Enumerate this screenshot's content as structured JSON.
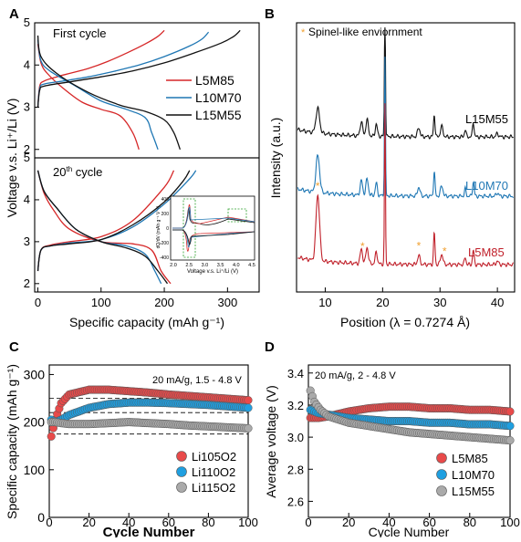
{
  "chart_data": [
    {
      "panel": "A",
      "type": "line",
      "ylabel": "Voltage v.s. Li⁺/Li (V)",
      "xlabel": "Specific capacity (mAh g⁻¹)",
      "xlim": [
        -5,
        350
      ],
      "x_ticks": [
        "0",
        "100",
        "200",
        "300"
      ],
      "sub": [
        {
          "annotation": "First cycle",
          "ylim": [
            1.8,
            5
          ],
          "y_ticks": [
            "2",
            "3",
            "4",
            "5"
          ],
          "legend_placement": "right",
          "series": [
            {
              "name": "L5M85",
              "color": "#d62728",
              "charge": {
                "x": [
                  0,
                  3,
                  10,
                  30,
                  50,
                  80,
                  110,
                  140,
                  170,
                  190,
                  200
                ],
                "y": [
                  3.0,
                  3.5,
                  3.62,
                  3.72,
                  3.8,
                  3.92,
                  4.08,
                  4.28,
                  4.5,
                  4.68,
                  4.82
                ]
              },
              "discharge": {
                "x": [
                  0,
                  5,
                  15,
                  40,
                  70,
                  100,
                  130,
                  150,
                  160
                ],
                "y": [
                  4.5,
                  4.05,
                  3.8,
                  3.45,
                  3.12,
                  2.95,
                  2.8,
                  2.4,
                  2.0
                ]
              }
            },
            {
              "name": "L10M70",
              "color": "#1f77b4",
              "charge": {
                "x": [
                  0,
                  3,
                  10,
                  40,
                  80,
                  120,
                  160,
                  200,
                  240,
                  260,
                  270
                ],
                "y": [
                  3.0,
                  3.45,
                  3.55,
                  3.62,
                  3.72,
                  3.85,
                  4.0,
                  4.2,
                  4.45,
                  4.62,
                  4.78
                ]
              },
              "discharge": {
                "x": [
                  0,
                  5,
                  20,
                  60,
                  100,
                  140,
                  170,
                  180,
                  190
                ],
                "y": [
                  4.6,
                  4.1,
                  3.85,
                  3.5,
                  3.15,
                  2.95,
                  2.75,
                  2.4,
                  2.0
                ]
              }
            },
            {
              "name": "L15M55",
              "color": "#111111",
              "charge": {
                "x": [
                  0,
                  3,
                  10,
                  50,
                  100,
                  150,
                  200,
                  250,
                  290,
                  310,
                  320
                ],
                "y": [
                  3.0,
                  3.4,
                  3.5,
                  3.6,
                  3.72,
                  3.86,
                  4.05,
                  4.3,
                  4.52,
                  4.68,
                  4.82
                ]
              },
              "discharge": {
                "x": [
                  0,
                  5,
                  30,
                  80,
                  130,
                  170,
                  200,
                  215,
                  225
                ],
                "y": [
                  4.7,
                  4.2,
                  3.8,
                  3.35,
                  3.05,
                  2.9,
                  2.7,
                  2.4,
                  2.0
                ]
              }
            }
          ]
        },
        {
          "annotation": "20th cycle",
          "ylim": [
            1.8,
            5
          ],
          "y_ticks": [
            "2",
            "3",
            "4",
            "5"
          ],
          "series": [
            {
              "name": "L5M85",
              "color": "#d62728",
              "charge": {
                "x": [
                  0,
                  5,
                  20,
                  50,
                  100,
                  150,
                  200,
                  215
                ],
                "y": [
                  2.3,
                  2.8,
                  2.92,
                  3.0,
                  3.12,
                  3.5,
                  4.3,
                  4.7
                ]
              },
              "discharge": {
                "x": [
                  0,
                  10,
                  25,
                  50,
                  100,
                  150,
                  180,
                  195,
                  210
                ],
                "y": [
                  4.7,
                  4.15,
                  3.75,
                  3.3,
                  3.0,
                  2.95,
                  2.8,
                  2.3,
                  2.0
                ]
              }
            },
            {
              "name": "L10M70",
              "color": "#1f77b4",
              "charge": {
                "x": [
                  0,
                  5,
                  20,
                  50,
                  100,
                  150,
                  200,
                  240,
                  250
                ],
                "y": [
                  2.3,
                  2.8,
                  2.9,
                  2.97,
                  3.05,
                  3.35,
                  3.9,
                  4.5,
                  4.7
                ]
              },
              "discharge": {
                "x": [
                  0,
                  10,
                  30,
                  60,
                  100,
                  140,
                  170,
                  185,
                  195
                ],
                "y": [
                  4.7,
                  4.2,
                  3.8,
                  3.3,
                  3.0,
                  2.9,
                  2.7,
                  2.3,
                  2.0
                ]
              }
            },
            {
              "name": "L15M55",
              "color": "#111111",
              "charge": {
                "x": [
                  0,
                  5,
                  20,
                  50,
                  100,
                  150,
                  200,
                  230,
                  240
                ],
                "y": [
                  2.3,
                  2.8,
                  2.9,
                  2.95,
                  3.05,
                  3.4,
                  3.95,
                  4.45,
                  4.7
                ]
              },
              "discharge": {
                "x": [
                  0,
                  10,
                  30,
                  60,
                  100,
                  140,
                  170,
                  190,
                  205
                ],
                "y": [
                  4.7,
                  4.2,
                  3.8,
                  3.3,
                  3.0,
                  2.85,
                  2.65,
                  2.3,
                  2.0
                ]
              }
            }
          ],
          "inset": {
            "ylabel": "dQ/dV (mAh g⁻¹ V⁻¹)",
            "xlabel": "Voltage v.s. Li⁺/Li (V)",
            "x_ticks": [
              "2.0",
              "2.5",
              "3.0",
              "3.5",
              "4.0",
              "4.5"
            ],
            "y_ticks": [
              "400",
              "200",
              "0",
              "-200",
              "-400"
            ]
          }
        }
      ]
    },
    {
      "panel": "B",
      "type": "line",
      "xlabel": "Position (λ = 0.7274 Å)",
      "ylabel": "Intensity (a.u.)",
      "xlim": [
        5,
        43
      ],
      "x_ticks": [
        "10",
        "20",
        "30",
        "40"
      ],
      "legend_note": "Spinel-like enviornment",
      "marker_color": "#f0a030",
      "series": [
        {
          "name": "L15M55",
          "color": "#111111",
          "offset": 2.2
        },
        {
          "name": "L10M70",
          "color": "#1f77b4",
          "offset": 1.1
        },
        {
          "name": "L5M85",
          "color": "#c0202a",
          "offset": 0
        }
      ],
      "star_positions": [
        8.7,
        16.5,
        26.3,
        30.0
      ]
    },
    {
      "panel": "C",
      "type": "scatter",
      "annotation": "20 mA/g, 1.5 - 4.8 V",
      "xlabel": "Cycle Number",
      "ylabel": "Specific capacity (mAh g⁻¹)",
      "xlim": [
        0,
        100
      ],
      "ylim": [
        0,
        320
      ],
      "x_ticks": [
        "0",
        "20",
        "40",
        "60",
        "80",
        "100"
      ],
      "y_ticks": [
        "0",
        "100",
        "200",
        "300"
      ],
      "reference_lines": [
        250,
        220,
        175
      ],
      "legend_placement": "bottom-right",
      "series": [
        {
          "name": "Li105O2",
          "color": "#e84a4a",
          "values_at": {
            "x": [
              1,
              3,
              6,
              10,
              20,
              30,
              40,
              50,
              60,
              70,
              80,
              90,
              100
            ],
            "y": [
              170,
              205,
              240,
              258,
              268,
              268,
              265,
              262,
              258,
              255,
              252,
              249,
              246
            ]
          }
        },
        {
          "name": "Li110O2",
          "color": "#1f9fe0",
          "values_at": {
            "x": [
              1,
              3,
              6,
              10,
              20,
              30,
              40,
              50,
              60,
              70,
              80,
              90,
              100
            ],
            "y": [
              205,
              200,
              205,
              215,
              230,
              238,
              241,
              241,
              240,
              238,
              236,
              233,
              230
            ]
          }
        },
        {
          "name": "Li115O2",
          "color": "#aaaaaa",
          "values_at": {
            "x": [
              1,
              3,
              6,
              10,
              20,
              30,
              40,
              50,
              60,
              70,
              80,
              90,
              100
            ],
            "y": [
              200,
              200,
              198,
              196,
              196,
              198,
              200,
              198,
              196,
              193,
              191,
              189,
              187
            ]
          }
        }
      ]
    },
    {
      "panel": "D",
      "type": "scatter",
      "annotation": "20 mA/g, 2 - 4.8 V",
      "xlabel": "Cycle Number",
      "ylabel": "Average voltage (V)",
      "xlim": [
        0,
        100
      ],
      "ylim": [
        2.5,
        3.45
      ],
      "x_ticks": [
        "0",
        "20",
        "40",
        "60",
        "80",
        "100"
      ],
      "y_ticks": [
        "2.6",
        "2.8",
        "3.0",
        "3.2",
        "3.4"
      ],
      "legend_placement": "bottom-right",
      "series": [
        {
          "name": "L5M85",
          "color": "#e84a4a",
          "values_at": {
            "x": [
              1,
              5,
              10,
              20,
              30,
              40,
              50,
              60,
              70,
              80,
              90,
              100
            ],
            "y": [
              3.12,
              3.12,
              3.13,
              3.16,
              3.18,
              3.19,
              3.19,
              3.18,
              3.18,
              3.17,
              3.17,
              3.16
            ]
          }
        },
        {
          "name": "L10M70",
          "color": "#1f9fe0",
          "values_at": {
            "x": [
              1,
              5,
              10,
              20,
              30,
              40,
              50,
              60,
              70,
              80,
              90,
              100
            ],
            "y": [
              3.17,
              3.15,
              3.14,
              3.12,
              3.11,
              3.1,
              3.1,
              3.09,
              3.09,
              3.08,
              3.08,
              3.07
            ]
          }
        },
        {
          "name": "L15M55",
          "color": "#aaaaaa",
          "values_at": {
            "x": [
              1,
              3,
              6,
              10,
              20,
              30,
              40,
              50,
              60,
              70,
              80,
              90,
              100
            ],
            "y": [
              3.29,
              3.22,
              3.17,
              3.13,
              3.09,
              3.07,
              3.05,
              3.03,
              3.02,
              3.01,
              3.0,
              2.99,
              2.98
            ]
          }
        }
      ]
    }
  ],
  "labels": {
    "A": "A",
    "B": "B",
    "C": "C",
    "D": "D"
  }
}
